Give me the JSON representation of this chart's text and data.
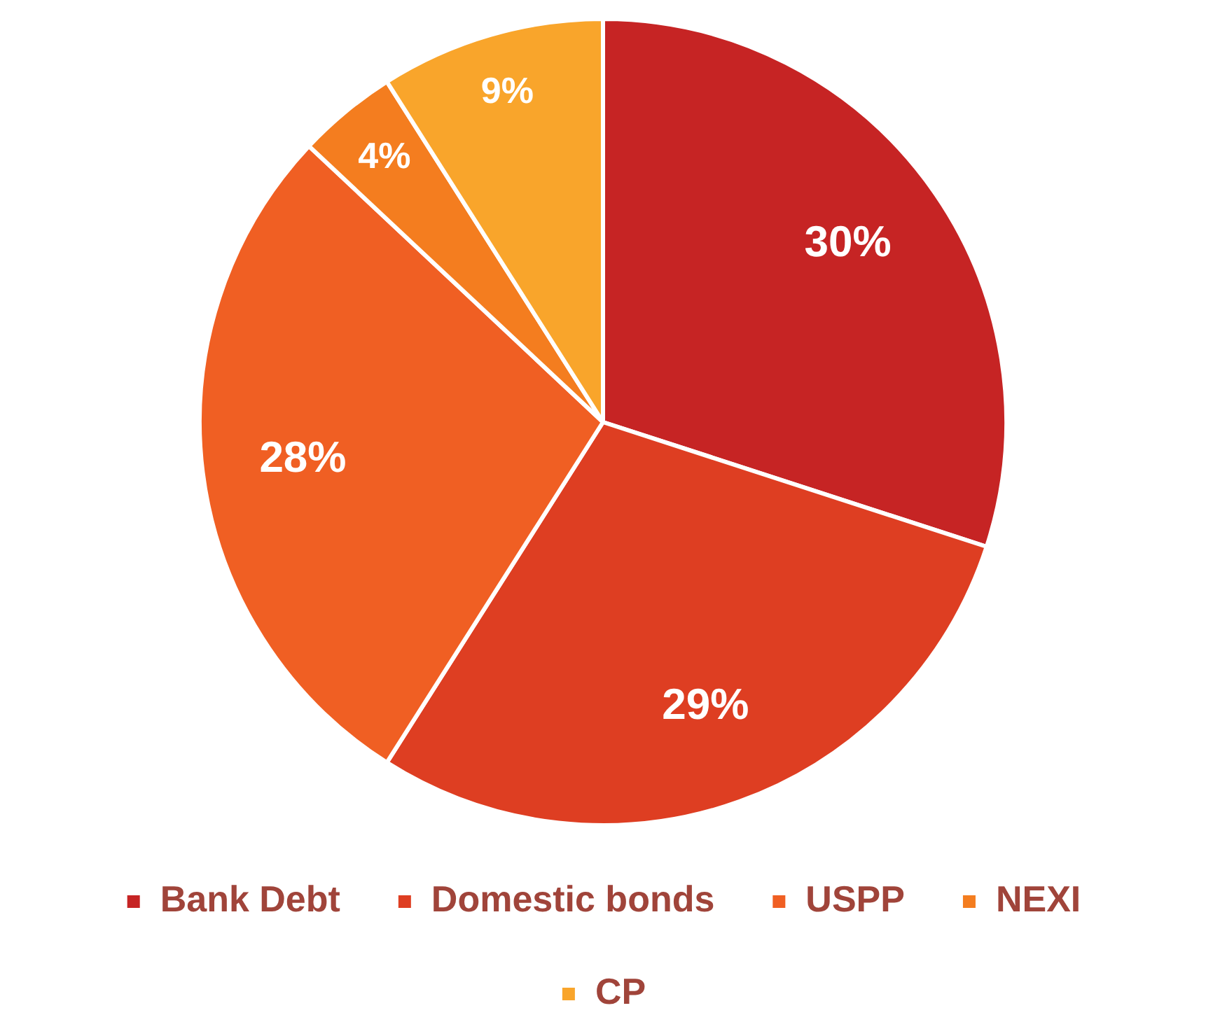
{
  "chart_data": {
    "type": "pie",
    "categories": [
      "Bank Debt",
      "Domestic bonds",
      "USPP",
      "NEXI",
      "CP"
    ],
    "values": [
      30,
      29,
      28,
      4,
      9
    ],
    "colors": [
      "#c62424",
      "#de3e22",
      "#f05f23",
      "#f47d1f",
      "#f9a52b"
    ],
    "value_labels": [
      "30%",
      "29%",
      "28%",
      "4%",
      "9%"
    ],
    "legend": "bottom"
  }
}
